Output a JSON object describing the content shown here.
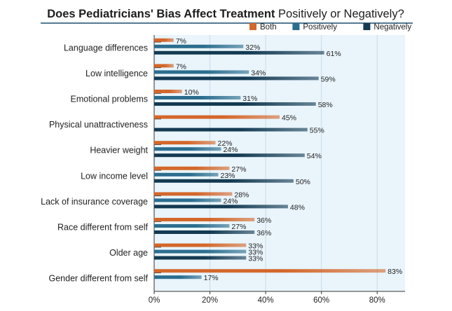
{
  "chart_data": {
    "type": "bar",
    "orientation": "horizontal",
    "title_bold": "Does Pediatricians' Bias Affect Treatment",
    "title_regular": "Positively or Negatively?",
    "xlim": [
      0,
      90
    ],
    "x_ticks": [
      0,
      20,
      40,
      60,
      80
    ],
    "x_tick_suffix": "%",
    "grid": true,
    "legend_position": "top-right",
    "categories": [
      "Language differences",
      "Low intelligence",
      "Emotional problems",
      "Physical unattractiveness",
      "Heavier weight",
      "Low income level",
      "Lack of insurance coverage",
      "Race different from self",
      "Older age",
      "Gender different from self"
    ],
    "series": [
      {
        "name": "Both",
        "color": "#d4672a",
        "values": [
          7,
          7,
          10,
          45,
          22,
          27,
          28,
          36,
          33,
          83
        ]
      },
      {
        "name": "Positively",
        "color": "#2b6d8e",
        "values": [
          32,
          34,
          31,
          null,
          24,
          23,
          24,
          27,
          33,
          17
        ]
      },
      {
        "name": "Negatively",
        "color": "#133a52",
        "values": [
          61,
          59,
          58,
          55,
          54,
          50,
          48,
          36,
          33,
          null
        ]
      }
    ]
  },
  "colors": {
    "plot_bg": "#e9f4fb",
    "title_rule": "#1b4d6e",
    "grid": "#c9dbe6"
  }
}
